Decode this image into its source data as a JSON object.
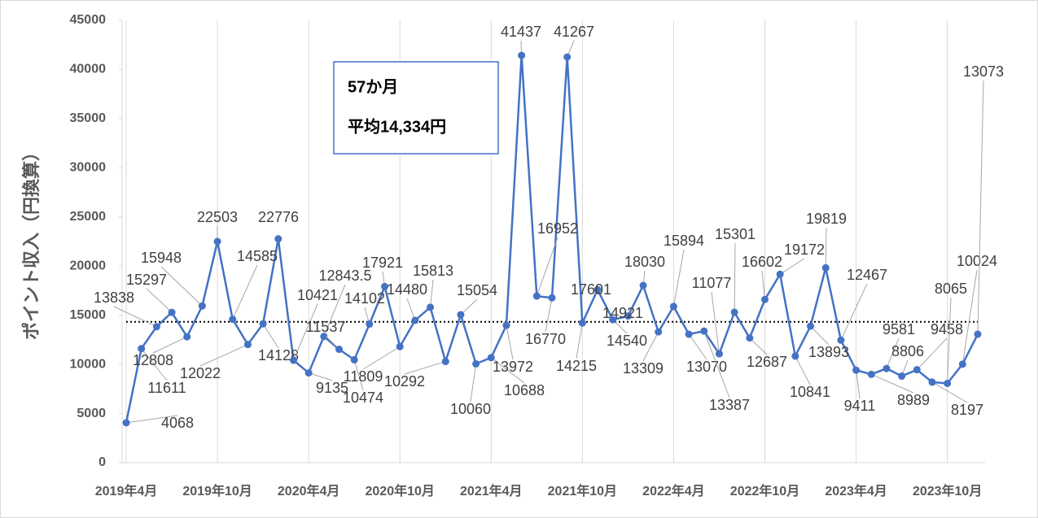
{
  "chart_data": {
    "type": "line",
    "y_axis_label": "ポイント収入（円換算）",
    "annotations": [
      "57か月",
      "平均14,334円"
    ],
    "categories": [
      "2019年4月",
      null,
      null,
      null,
      null,
      null,
      "2019年10月",
      null,
      null,
      null,
      null,
      null,
      "2020年4月",
      null,
      null,
      null,
      null,
      null,
      "2020年10月",
      null,
      null,
      null,
      null,
      null,
      "2021年4月",
      null,
      null,
      null,
      null,
      null,
      "2021年10月",
      null,
      null,
      null,
      null,
      null,
      "2022年4月",
      null,
      null,
      null,
      null,
      null,
      "2022年10月",
      null,
      null,
      null,
      null,
      null,
      "2023年4月",
      null,
      null,
      null,
      null,
      null,
      "2023年10月",
      null,
      null
    ],
    "series": [
      {
        "name": "ポイント収入",
        "color": "#4472c4",
        "values": [
          4068,
          11611,
          13838,
          15297,
          12808,
          15948,
          22503,
          14585,
          12022,
          14128,
          22776,
          10421,
          9135,
          12843.5,
          11537,
          10474,
          14102,
          17921,
          11809,
          14480,
          15813,
          10292,
          15054,
          10060,
          10688,
          13972,
          41437,
          16952,
          16770,
          41267,
          14215,
          17601,
          14540,
          14921,
          18030,
          13309,
          15894,
          13070,
          13387,
          11077,
          15301,
          12687,
          16602,
          19172,
          10841,
          13893,
          19819,
          12467,
          9411,
          8989,
          9581,
          8806,
          9458,
          8197,
          8065,
          10024,
          13073
        ]
      }
    ],
    "mean_line": 14334,
    "ylim": [
      0,
      45000
    ],
    "yticks": [
      0,
      5000,
      10000,
      15000,
      20000,
      25000,
      30000,
      35000,
      40000,
      45000
    ],
    "xgrid": true,
    "last_label_color": "#ff0000"
  }
}
